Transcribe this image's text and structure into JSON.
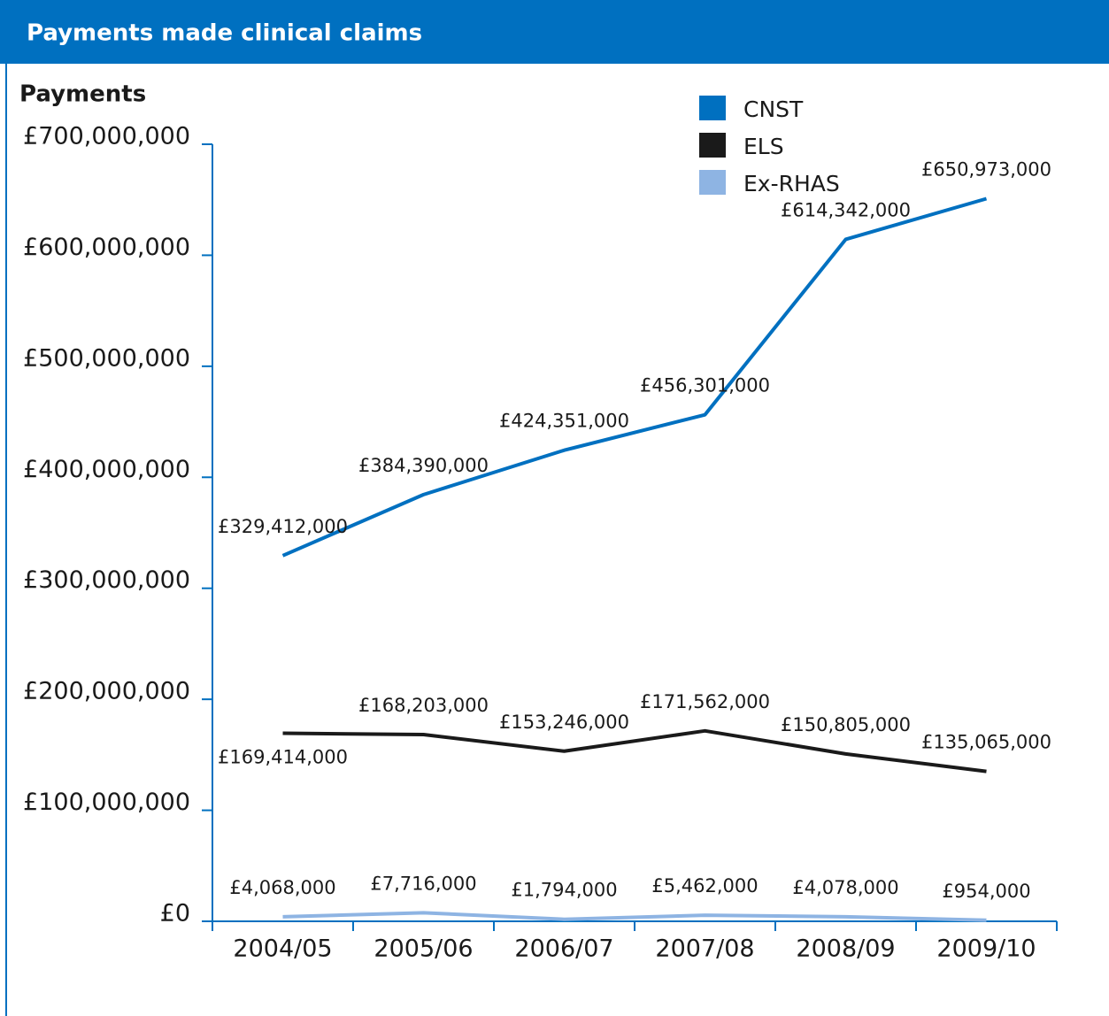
{
  "chart_data": {
    "type": "line",
    "title": "Payments made clinical claims",
    "y_label": "Payments",
    "categories": [
      "2004/05",
      "2005/06",
      "2006/07",
      "2007/08",
      "2008/09",
      "2009/10"
    ],
    "series": [
      {
        "name": "CNST",
        "color": "#0070c0",
        "values": [
          329412000,
          384390000,
          424351000,
          456301000,
          614342000,
          650973000
        ],
        "value_labels": [
          "£329,412,000",
          "£384,390,000",
          "£424,351,000",
          "£456,301,000",
          "£614,342,000",
          "£650,973,000"
        ]
      },
      {
        "name": "ELS",
        "color": "#1a1a1a",
        "values": [
          169414000,
          168203000,
          153246000,
          171562000,
          150805000,
          135065000
        ],
        "value_labels": [
          "£169,414,000",
          "£168,203,000",
          "£153,246,000",
          "£171,562,000",
          "£150,805,000",
          "£135,065,000"
        ]
      },
      {
        "name": "Ex-RHAS",
        "color": "#8eb4e3",
        "values": [
          4068000,
          7716000,
          1794000,
          5462000,
          4078000,
          954000
        ],
        "value_labels": [
          "£4,068,000",
          "£7,716,000",
          "£1,794,000",
          "£5,462,000",
          "£4,078,000",
          "£954,000"
        ]
      }
    ],
    "ylim": [
      0,
      700000000
    ],
    "yticks": [
      {
        "value": 0,
        "label": "£0"
      },
      {
        "value": 100000000,
        "label": "£100,000,000"
      },
      {
        "value": 200000000,
        "label": "£200,000,000"
      },
      {
        "value": 300000000,
        "label": "£300,000,000"
      },
      {
        "value": 400000000,
        "label": "£400,000,000"
      },
      {
        "value": 500000000,
        "label": "£500,000,000"
      },
      {
        "value": 600000000,
        "label": "£600,000,000"
      },
      {
        "value": 700000000,
        "label": "£700,000,000"
      }
    ],
    "legend": "top-right",
    "axis_color": "#0070c0"
  }
}
